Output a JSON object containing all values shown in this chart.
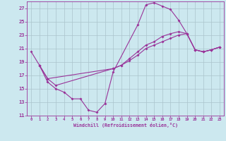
{
  "xlabel": "Windchill (Refroidissement éolien,°C)",
  "bg_color": "#cce8ef",
  "grid_color": "#aac4cc",
  "line_color": "#993399",
  "xlim": [
    -0.5,
    23.5
  ],
  "ylim": [
    11,
    28
  ],
  "yticks": [
    11,
    13,
    15,
    17,
    19,
    21,
    23,
    25,
    27
  ],
  "xticks": [
    0,
    1,
    2,
    3,
    4,
    5,
    6,
    7,
    8,
    9,
    10,
    11,
    12,
    13,
    14,
    15,
    16,
    17,
    18,
    19,
    20,
    21,
    22,
    23
  ],
  "line1_x": [
    0,
    1,
    2,
    3,
    4,
    5,
    6,
    7,
    8,
    9,
    10,
    13,
    14,
    15,
    16,
    17,
    18,
    19,
    20,
    21,
    22,
    23
  ],
  "line1_y": [
    20.5,
    18.5,
    16.0,
    15.0,
    14.5,
    13.5,
    13.5,
    11.8,
    11.5,
    12.8,
    17.5,
    24.5,
    27.5,
    27.8,
    27.3,
    26.8,
    25.2,
    23.2,
    20.8,
    20.5,
    20.8,
    21.2
  ],
  "line2_x": [
    1,
    2,
    3,
    10,
    11,
    12,
    13,
    14,
    15,
    16,
    17,
    18,
    19,
    20,
    21,
    22,
    23
  ],
  "line2_y": [
    18.5,
    16.5,
    15.5,
    18.0,
    18.5,
    19.5,
    20.5,
    21.5,
    22.0,
    22.8,
    23.2,
    23.5,
    23.2,
    20.8,
    20.5,
    20.8,
    21.2
  ],
  "line3_x": [
    1,
    2,
    10,
    11,
    12,
    13,
    14,
    15,
    16,
    17,
    18,
    19,
    20,
    21,
    22,
    23
  ],
  "line3_y": [
    18.5,
    16.5,
    18.0,
    18.5,
    19.2,
    20.0,
    21.0,
    21.5,
    22.0,
    22.5,
    23.0,
    23.2,
    20.8,
    20.5,
    20.8,
    21.2
  ]
}
